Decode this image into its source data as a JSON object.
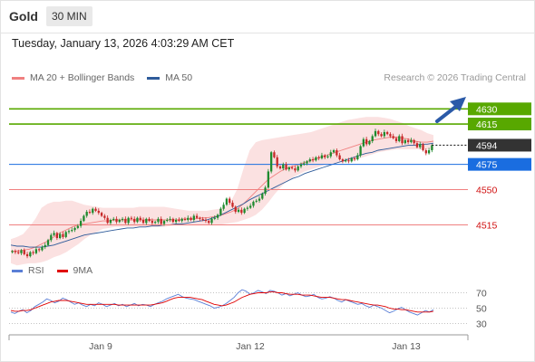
{
  "header": {
    "title": "Gold",
    "timeframe": "30 MIN"
  },
  "datetime": "Tuesday, January 13, 2026 4:03:29 AM CET",
  "legend": {
    "items": [
      {
        "label": "MA 20 + Bollinger Bands",
        "color": "#f08080"
      },
      {
        "label": "MA 50",
        "color": "#2e5b9a"
      }
    ]
  },
  "credit": "Research © 2026 Trading Central",
  "rsi_legend": {
    "items": [
      {
        "label": "RSI",
        "color": "#5b7fd6"
      },
      {
        "label": "9MA",
        "color": "#e00000"
      }
    ]
  },
  "colors": {
    "up": "#1e8a2e",
    "down": "#c62828",
    "resistance": "#58a800",
    "support": "#f08080",
    "pivot": "#1a6de0",
    "price": "#333333",
    "band": "#fbe1e1",
    "ma20": "#f08080",
    "ma50": "#2e5b9a"
  },
  "chart_data": [
    {
      "type": "candlestick",
      "title": "Gold",
      "timeframe": "30 MIN",
      "x_tick_labels": [
        "Jan 9",
        "Jan 12",
        "Jan 13"
      ],
      "ylim": [
        4485,
        4650
      ],
      "levels": [
        {
          "value": 4630,
          "label": "4630",
          "kind": "resistance"
        },
        {
          "value": 4615,
          "label": "4615",
          "kind": "resistance"
        },
        {
          "value": 4594,
          "label": "4594",
          "kind": "price"
        },
        {
          "value": 4575,
          "label": "4575",
          "kind": "pivot"
        },
        {
          "value": 4550,
          "label": "4550",
          "kind": "support"
        },
        {
          "value": 4515,
          "label": "4515",
          "kind": "support"
        }
      ],
      "close": [
        4489,
        4488,
        4487,
        4490,
        4486,
        4484,
        4488,
        4487,
        4491,
        4490,
        4493,
        4495,
        4500,
        4505,
        4507,
        4502,
        4506,
        4503,
        4508,
        4509,
        4510,
        4512,
        4514,
        4519,
        4524,
        4528,
        4527,
        4531,
        4529,
        4527,
        4524,
        4522,
        4517,
        4520,
        4521,
        4518,
        4520,
        4521,
        4517,
        4522,
        4521,
        4518,
        4522,
        4520,
        4517,
        4521,
        4519,
        4517,
        4518,
        4521,
        4516,
        4519,
        4520,
        4521,
        4518,
        4520,
        4519,
        4521,
        4520,
        4522,
        4520,
        4524,
        4522,
        4521,
        4520,
        4519,
        4517,
        4521,
        4522,
        4525,
        4531,
        4535,
        4541,
        4537,
        4533,
        4528,
        4530,
        4527,
        4531,
        4532,
        4534,
        4538,
        4539,
        4541,
        4546,
        4552,
        4568,
        4587,
        4582,
        4573,
        4571,
        4575,
        4570,
        4572,
        4571,
        4569,
        4573,
        4575,
        4576,
        4578,
        4580,
        4579,
        4582,
        4581,
        4584,
        4582,
        4583,
        4587,
        4589,
        4584,
        4580,
        4578,
        4579,
        4578,
        4581,
        4580,
        4584,
        4593,
        4600,
        4595,
        4598,
        4603,
        4608,
        4605,
        4603,
        4607,
        4605,
        4603,
        4601,
        4598,
        4603,
        4596,
        4599,
        4597,
        4599,
        4596,
        4592,
        4595,
        4589,
        4586,
        4589,
        4594
      ],
      "bollinger_upper": [
        4501,
        4503,
        4506,
        4513,
        4521,
        4532,
        4536,
        4538,
        4538,
        4539,
        4539,
        4537,
        4535,
        4534,
        4533,
        4532,
        4532,
        4532,
        4532,
        4532,
        4532,
        4533,
        4533,
        4533,
        4533,
        4533,
        4532,
        4531,
        4530,
        4529,
        4529,
        4529,
        4529,
        4530,
        4531,
        4533,
        4539,
        4551,
        4571,
        4589,
        4597,
        4599,
        4600,
        4601,
        4602,
        4603,
        4604,
        4605,
        4606,
        4607,
        4609,
        4611,
        4613,
        4615,
        4617,
        4619,
        4620,
        4621,
        4622,
        4622,
        4622,
        4621,
        4620,
        4618,
        4616,
        4613,
        4611,
        4609,
        4606,
        4604
      ],
      "bollinger_lower": [
        4477,
        4475,
        4476,
        4477,
        4477,
        4478,
        4480,
        4483,
        4485,
        4488,
        4492,
        4496,
        4501,
        4505,
        4508,
        4511,
        4512,
        4513,
        4513,
        4513,
        4513,
        4513,
        4513,
        4513,
        4513,
        4513,
        4514,
        4515,
        4515,
        4515,
        4515,
        4515,
        4515,
        4515,
        4515,
        4516,
        4517,
        4518,
        4520,
        4522,
        4525,
        4530,
        4537,
        4545,
        4552,
        4558,
        4562,
        4565,
        4568,
        4570,
        4572,
        4574,
        4575,
        4576,
        4577,
        4578,
        4579,
        4581,
        4583,
        4585,
        4587,
        4588,
        4589,
        4590,
        4590,
        4590,
        4590,
        4590,
        4590,
        4590
      ],
      "ma20": [
        4489,
        4489,
        4490,
        4491,
        4493,
        4496,
        4499,
        4503,
        4507,
        4510,
        4513,
        4515,
        4516,
        4517,
        4518,
        4519,
        4519,
        4520,
        4520,
        4520,
        4520,
        4520,
        4520,
        4520,
        4520,
        4520,
        4520,
        4520,
        4521,
        4521,
        4521,
        4522,
        4522,
        4523,
        4524,
        4526,
        4528,
        4531,
        4536,
        4542,
        4548,
        4554,
        4560,
        4564,
        4568,
        4571,
        4573,
        4575,
        4577,
        4579,
        4581,
        4583,
        4585,
        4587,
        4589,
        4591,
        4593,
        4595,
        4597,
        4599,
        4600,
        4601,
        4602,
        4602,
        4601,
        4600,
        4598,
        4597,
        4597,
        4598
      ],
      "ma50": [
        4495,
        4494,
        4494,
        4493,
        4493,
        4493,
        4494,
        4495,
        4497,
        4499,
        4501,
        4503,
        4505,
        4506,
        4507,
        4508,
        4509,
        4510,
        4511,
        4512,
        4512,
        4513,
        4513,
        4514,
        4514,
        4515,
        4515,
        4516,
        4516,
        4517,
        4518,
        4519,
        4520,
        4522,
        4524,
        4527,
        4530,
        4533,
        4536,
        4540,
        4543,
        4546,
        4549,
        4552,
        4555,
        4558,
        4561,
        4563,
        4566,
        4568,
        4570,
        4572,
        4574,
        4576,
        4578,
        4580,
        4582,
        4584,
        4586,
        4587,
        4589,
        4590,
        4591,
        4592,
        4593,
        4594,
        4594,
        4595,
        4595,
        4596
      ]
    },
    {
      "type": "line",
      "title": "RSI",
      "ylim": [
        20,
        80
      ],
      "y_tick_labels": [
        "70",
        "50",
        "30"
      ],
      "series": [
        {
          "name": "RSI",
          "color": "#5b7fd6",
          "values": [
            45,
            43,
            46,
            48,
            44,
            47,
            52,
            55,
            58,
            62,
            60,
            57,
            59,
            63,
            61,
            58,
            55,
            57,
            54,
            52,
            55,
            53,
            57,
            55,
            52,
            54,
            56,
            53,
            55,
            52,
            54,
            56,
            53,
            55,
            54,
            52,
            55,
            57,
            59,
            62,
            64,
            66,
            68,
            65,
            63,
            62,
            61,
            59,
            57,
            55,
            53,
            50,
            51,
            53,
            56,
            60,
            64,
            70,
            74,
            72,
            68,
            70,
            73,
            71,
            69,
            73,
            72,
            70,
            67,
            69,
            66,
            68,
            70,
            67,
            65,
            66,
            68,
            64,
            62,
            63,
            65,
            63,
            60,
            58,
            61,
            59,
            57,
            55,
            56,
            53,
            51,
            54,
            52,
            50,
            47,
            44,
            46,
            49,
            51,
            48,
            45,
            43,
            41,
            44,
            47,
            45,
            48
          ]
        },
        {
          "name": "9MA",
          "color": "#e00000",
          "values": [
            47,
            46,
            46,
            47,
            47,
            48,
            50,
            52,
            54,
            56,
            58,
            59,
            60,
            60,
            60,
            59,
            58,
            57,
            56,
            55,
            55,
            55,
            55,
            55,
            55,
            55,
            55,
            54,
            54,
            54,
            54,
            54,
            54,
            54,
            54,
            54,
            55,
            56,
            57,
            59,
            61,
            63,
            64,
            64,
            64,
            64,
            63,
            62,
            61,
            59,
            57,
            55,
            54,
            53,
            54,
            56,
            58,
            61,
            64,
            66,
            68,
            69,
            70,
            70,
            70,
            71,
            71,
            70,
            70,
            69,
            68,
            68,
            68,
            67,
            67,
            67,
            66,
            65,
            64,
            64,
            64,
            63,
            62,
            61,
            61,
            60,
            59,
            58,
            57,
            56,
            55,
            54,
            54,
            53,
            52,
            50,
            49,
            49,
            48,
            48,
            47,
            46,
            45,
            45,
            45,
            45,
            46
          ]
        }
      ]
    }
  ]
}
